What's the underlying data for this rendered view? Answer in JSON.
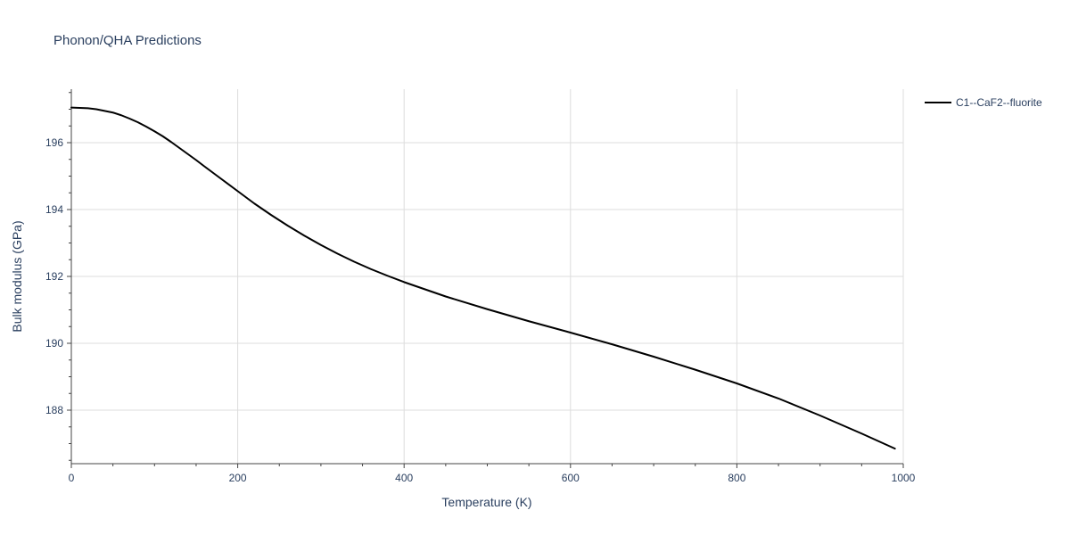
{
  "chart_data": {
    "type": "line",
    "title": "Phonon/QHA Predictions",
    "xlabel": "Temperature (K)",
    "ylabel": "Bulk modulus (GPa)",
    "xlim": [
      0,
      1000
    ],
    "ylim": [
      186.4,
      197.6
    ],
    "x_ticks": [
      0,
      200,
      400,
      600,
      800,
      1000
    ],
    "x_tick_labels": [
      "0",
      "200",
      "400",
      "600",
      "800",
      "1000"
    ],
    "y_ticks": [
      188,
      190,
      192,
      194,
      196
    ],
    "y_tick_labels": [
      "188",
      "190",
      "192",
      "194",
      "196"
    ],
    "grid": true,
    "legend_position": "top-right",
    "series": [
      {
        "name": "C1--CaF2--fluorite",
        "color": "#000000",
        "x": [
          0,
          10,
          20,
          30,
          40,
          50,
          60,
          70,
          80,
          90,
          100,
          110,
          120,
          130,
          140,
          150,
          160,
          180,
          200,
          220,
          240,
          260,
          280,
          300,
          320,
          340,
          360,
          380,
          400,
          450,
          500,
          550,
          600,
          650,
          700,
          750,
          800,
          850,
          900,
          950,
          990
        ],
        "y": [
          197.05,
          197.04,
          197.03,
          197.0,
          196.95,
          196.9,
          196.82,
          196.72,
          196.61,
          196.48,
          196.34,
          196.19,
          196.02,
          195.84,
          195.66,
          195.48,
          195.29,
          194.92,
          194.55,
          194.18,
          193.84,
          193.52,
          193.22,
          192.94,
          192.68,
          192.44,
          192.22,
          192.02,
          191.83,
          191.4,
          191.02,
          190.66,
          190.32,
          189.97,
          189.6,
          189.21,
          188.8,
          188.35,
          187.84,
          187.3,
          186.85
        ]
      }
    ]
  }
}
